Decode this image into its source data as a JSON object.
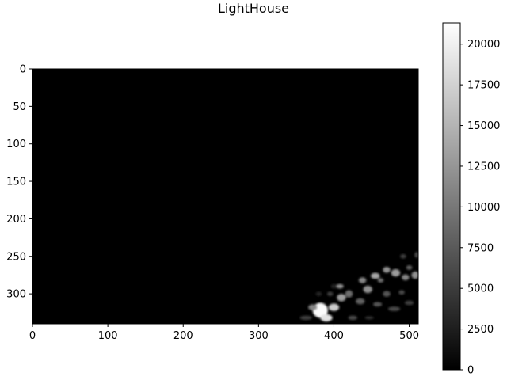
{
  "chart_data": {
    "type": "heatmap",
    "title": "LightHouse",
    "xlabel": "",
    "ylabel": "",
    "colormap": "gray",
    "image_size": [
      512,
      340
    ],
    "xlim": [
      0,
      512
    ],
    "ylim": [
      340,
      0
    ],
    "x_ticks": [
      0,
      100,
      200,
      300,
      400,
      500
    ],
    "x_tick_labels": [
      "0",
      "100",
      "200",
      "300",
      "400",
      "500"
    ],
    "y_ticks": [
      0,
      50,
      100,
      150,
      200,
      250,
      300
    ],
    "y_tick_labels": [
      "0",
      "50",
      "100",
      "150",
      "200",
      "250",
      "300"
    ],
    "colorbar": {
      "range": [
        0,
        21300
      ],
      "ticks": [
        0,
        2500,
        5000,
        7500,
        10000,
        12500,
        15000,
        17500,
        20000
      ],
      "tick_labels": [
        "0",
        "2500",
        "5000",
        "7500",
        "10000",
        "12500",
        "15000",
        "17500",
        "20000"
      ]
    },
    "background_value": 0,
    "highlights": [
      {
        "x": 382,
        "y": 322,
        "rx": 10,
        "ry": 10,
        "value": 21000
      },
      {
        "x": 390,
        "y": 332,
        "rx": 8,
        "ry": 5,
        "value": 19000
      },
      {
        "x": 400,
        "y": 318,
        "rx": 7,
        "ry": 5,
        "value": 17000
      },
      {
        "x": 372,
        "y": 318,
        "rx": 6,
        "ry": 4,
        "value": 11000
      },
      {
        "x": 363,
        "y": 332,
        "rx": 8,
        "ry": 3,
        "value": 5000
      },
      {
        "x": 410,
        "y": 305,
        "rx": 6,
        "ry": 5,
        "value": 13000
      },
      {
        "x": 420,
        "y": 300,
        "rx": 5,
        "ry": 5,
        "value": 9000
      },
      {
        "x": 435,
        "y": 310,
        "rx": 6,
        "ry": 4,
        "value": 8000
      },
      {
        "x": 408,
        "y": 290,
        "rx": 5,
        "ry": 3,
        "value": 12000
      },
      {
        "x": 445,
        "y": 294,
        "rx": 6,
        "ry": 5,
        "value": 12000
      },
      {
        "x": 438,
        "y": 282,
        "rx": 5,
        "ry": 4,
        "value": 11000
      },
      {
        "x": 455,
        "y": 276,
        "rx": 6,
        "ry": 4,
        "value": 14000
      },
      {
        "x": 470,
        "y": 268,
        "rx": 5,
        "ry": 4,
        "value": 12000
      },
      {
        "x": 462,
        "y": 282,
        "rx": 4,
        "ry": 3,
        "value": 9000
      },
      {
        "x": 482,
        "y": 272,
        "rx": 6,
        "ry": 5,
        "value": 13000
      },
      {
        "x": 495,
        "y": 278,
        "rx": 5,
        "ry": 4,
        "value": 11000
      },
      {
        "x": 508,
        "y": 275,
        "rx": 5,
        "ry": 5,
        "value": 12000
      },
      {
        "x": 500,
        "y": 265,
        "rx": 4,
        "ry": 3,
        "value": 8000
      },
      {
        "x": 492,
        "y": 250,
        "rx": 4,
        "ry": 3,
        "value": 5000
      },
      {
        "x": 510,
        "y": 248,
        "rx": 3,
        "ry": 4,
        "value": 6000
      },
      {
        "x": 458,
        "y": 314,
        "rx": 6,
        "ry": 3,
        "value": 7000
      },
      {
        "x": 480,
        "y": 320,
        "rx": 8,
        "ry": 3,
        "value": 6000
      },
      {
        "x": 500,
        "y": 312,
        "rx": 6,
        "ry": 3,
        "value": 5000
      },
      {
        "x": 470,
        "y": 300,
        "rx": 5,
        "ry": 4,
        "value": 7000
      },
      {
        "x": 490,
        "y": 298,
        "rx": 4,
        "ry": 3,
        "value": 6000
      },
      {
        "x": 425,
        "y": 332,
        "rx": 6,
        "ry": 3,
        "value": 6000
      },
      {
        "x": 447,
        "y": 332,
        "rx": 6,
        "ry": 2,
        "value": 4000
      },
      {
        "x": 395,
        "y": 300,
        "rx": 4,
        "ry": 3,
        "value": 5000
      },
      {
        "x": 380,
        "y": 300,
        "rx": 4,
        "ry": 3,
        "value": 3000
      },
      {
        "x": 400,
        "y": 290,
        "rx": 4,
        "ry": 3,
        "value": 3000
      }
    ]
  }
}
